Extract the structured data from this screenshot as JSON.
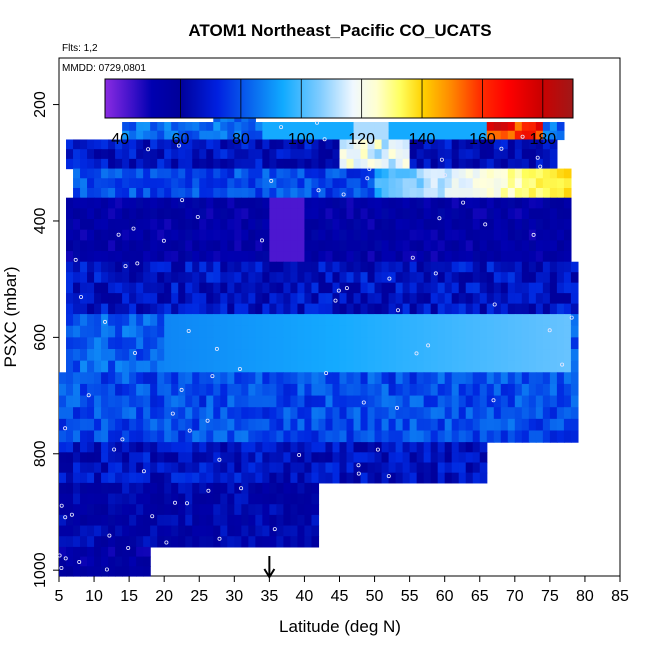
{
  "chart_data": {
    "type": "heatmap",
    "title": "ATOM1 Northeast_Pacific CO_UCATS",
    "subtitle_flights": "Flts: 1,2",
    "subtitle_dates": "MMDD: 0729,0801",
    "xlabel": "Latitude (deg N)",
    "ylabel": "PSXC (mbar)",
    "xlim": [
      5,
      85
    ],
    "ylim": [
      1010,
      120
    ],
    "y_reversed": true,
    "x_ticks": [
      "5",
      "10",
      "15",
      "20",
      "25",
      "30",
      "35",
      "40",
      "45",
      "50",
      "55",
      "60",
      "65",
      "70",
      "75",
      "80",
      "85"
    ],
    "y_ticks": [
      "200",
      "400",
      "600",
      "800",
      "1000"
    ],
    "colorbar": {
      "range": [
        35,
        190
      ],
      "ticks": [
        "40",
        "60",
        "80",
        "100",
        "120",
        "140",
        "160",
        "180"
      ]
    },
    "marker_latitude": 35,
    "data_summary": [
      {
        "pressure_range": [
          190,
          230
        ],
        "lat_range": [
          27,
          33
        ],
        "co_ppb": 80
      },
      {
        "pressure_range": [
          230,
          260
        ],
        "lat_range": [
          14,
          77
        ],
        "co_ppb": 80
      },
      {
        "pressure_range": [
          260,
          310
        ],
        "lat_range": [
          6,
          76
        ],
        "co_ppb": 65
      },
      {
        "pressure_range": [
          310,
          360
        ],
        "lat_range": [
          7,
          78
        ],
        "co_ppb": 75
      },
      {
        "pressure_range": [
          360,
          470
        ],
        "lat_range": [
          6,
          78
        ],
        "co_ppb": 55
      },
      {
        "pressure_range": [
          470,
          560
        ],
        "lat_range": [
          6,
          79
        ],
        "co_ppb": 65
      },
      {
        "pressure_range": [
          560,
          660
        ],
        "lat_range": [
          6,
          79
        ],
        "co_ppb": 78
      },
      {
        "pressure_range": [
          660,
          780
        ],
        "lat_range": [
          5,
          79
        ],
        "co_ppb": 75
      },
      {
        "pressure_range": [
          780,
          850
        ],
        "lat_range": [
          5,
          66
        ],
        "co_ppb": 65
      },
      {
        "pressure_range": [
          850,
          960
        ],
        "lat_range": [
          5,
          42
        ],
        "co_ppb": 60
      },
      {
        "pressure_range": [
          960,
          1010
        ],
        "lat_range": [
          5,
          18
        ],
        "co_ppb": 55
      }
    ]
  }
}
